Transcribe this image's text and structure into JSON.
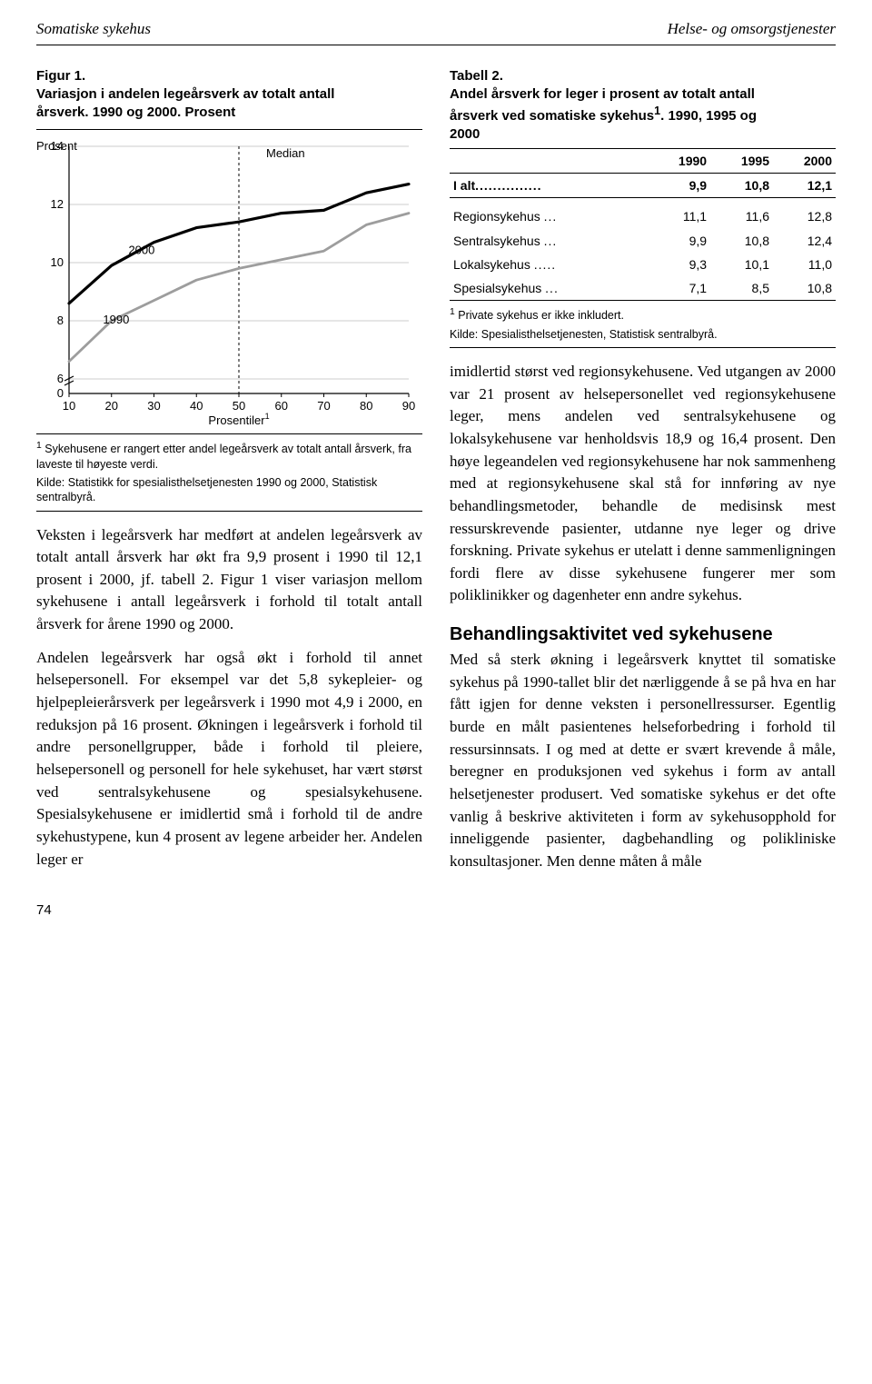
{
  "header": {
    "left": "Somatiske sykehus",
    "right": "Helse- og omsorgstjenester"
  },
  "figure1": {
    "label": "Figur 1.",
    "title": "Variasjon i andelen legeårsverk av totalt antall årsverk. 1990 og 2000. Prosent",
    "chart": {
      "type": "line",
      "y_label": "Prosent",
      "x_label": "Prosentiler",
      "x_label_sup": "1",
      "xlim": [
        10,
        90
      ],
      "ylim": [
        0,
        14
      ],
      "xtick_values": [
        10,
        20,
        30,
        40,
        50,
        60,
        70,
        80,
        90
      ],
      "ytick_values": [
        0,
        6,
        8,
        10,
        12,
        14
      ],
      "axis_break_y": 5,
      "median_x": 50,
      "median_label": "Median",
      "grid_color": "#cccccc",
      "background_color": "#ffffff",
      "axis_color": "#000000",
      "axis_font_size": 13,
      "line_width_2000": 3.2,
      "line_width_1990": 2.8,
      "series": [
        {
          "name": "2000",
          "label_xy": [
            24,
            10.3
          ],
          "color": "#000000",
          "x": [
            10,
            20,
            30,
            40,
            50,
            60,
            70,
            80,
            90
          ],
          "y": [
            8.6,
            9.9,
            10.7,
            11.2,
            11.4,
            11.7,
            11.8,
            12.4,
            12.7
          ]
        },
        {
          "name": "1990",
          "label_xy": [
            18,
            7.9
          ],
          "color": "#9d9d9d",
          "x": [
            10,
            20,
            30,
            40,
            50,
            60,
            70,
            80,
            90
          ],
          "y": [
            6.6,
            8.0,
            8.7,
            9.4,
            9.8,
            10.1,
            10.4,
            11.3,
            11.7
          ]
        }
      ]
    },
    "footnote1_sup": "1",
    "footnote1": " Sykehusene er rangert etter andel legeårsverk av totalt antall årsverk, fra laveste til høyeste verdi.",
    "source": "Kilde: Statistikk for spesialisthelsetjenesten 1990 og 2000, Statistisk sentralbyrå."
  },
  "table2": {
    "label": "Tabell 2.",
    "title_line1": "Andel årsverk for leger i prosent av totalt antall årsverk ved somatiske sykehus",
    "title_sup": "1",
    "title_line2": ". 1990, 1995 og 2000",
    "columns": [
      "",
      "1990",
      "1995",
      "2000"
    ],
    "total_row": {
      "label": "I alt",
      "dots": "...............",
      "values": [
        "9,9",
        "10,8",
        "12,1"
      ]
    },
    "rows": [
      {
        "label": "Regionsykehus",
        "dots": "...",
        "values": [
          "11,1",
          "11,6",
          "12,8"
        ]
      },
      {
        "label": "Sentralsykehus",
        "dots": "...",
        "values": [
          "9,9",
          "10,8",
          "12,4"
        ]
      },
      {
        "label": "Lokalsykehus",
        "dots": ".....",
        "values": [
          "9,3",
          "10,1",
          "11,0"
        ]
      },
      {
        "label": "Spesialsykehus",
        "dots": "...",
        "values": [
          "7,1",
          "8,5",
          "10,8"
        ]
      }
    ],
    "footnote_sup": "1",
    "footnote": " Private sykehus er ikke inkludert.",
    "source": "Kilde: Spesialisthelsetjenesten, Statistisk sentralbyrå."
  },
  "body": {
    "left_p1": "Veksten i legeårsverk har medført at andelen legeårsverk av totalt antall årsverk har økt fra 9,9 prosent i 1990 til 12,1 prosent i 2000, jf. tabell 2. Figur 1 viser variasjon mellom sykehusene i antall legeårsverk i forhold til totalt antall årsverk for årene 1990 og 2000.",
    "left_p2": "Andelen legeårsverk har også økt i forhold til annet helsepersonell. For eksempel var det 5,8 sykepleier- og hjelpepleierårsverk per legeårsverk i 1990 mot 4,9 i 2000, en reduksjon på 16 prosent. Økningen i legeårsverk i forhold til andre personellgrupper, både i forhold til pleiere, helsepersonell og personell for hele sykehuset, har vært størst ved sentralsykehusene og spesialsykehusene. Spesialsykehusene er imidlertid små i forhold til de andre sykehustypene, kun 4 prosent av legene arbeider her. Andelen leger er",
    "right_p1": "imidlertid størst ved regionsykehusene. Ved utgangen av 2000 var 21 prosent av helsepersonellet ved regionsykehusene leger, mens andelen ved sentralsykehusene og lokalsykehusene var henholdsvis 18,9 og 16,4 prosent. Den høye legeandelen ved regionsykehusene har nok sammenheng med at regionsykehusene skal stå for innføring av nye behandlingsmetoder, behandle de medisinsk mest ressurskrevende pasienter, utdanne nye leger og drive forskning. Private sykehus er utelatt i denne sammenligningen fordi flere av disse sykehusene fungerer mer som poliklinikker og dagenheter enn andre sykehus.",
    "section_heading": "Behandlingsaktivitet ved sykehusene",
    "right_p2": "Med så sterk økning i legeårsverk knyttet til somatiske sykehus på 1990-tallet blir det nærliggende å se på hva en har fått igjen for denne veksten i personellressurser. Egentlig burde en målt pasientenes helseforbedring i forhold til ressursinnsats. I og med at dette er svært krevende å måle, beregner en produksjonen ved sykehus i form av antall helsetjenester produsert. Ved somatiske sykehus er det ofte vanlig å beskrive aktiviteten i form av sykehusopphold for inneliggende pasienter, dagbehandling og polikliniske konsultasjoner. Men denne måten å måle"
  },
  "page_number": "74"
}
